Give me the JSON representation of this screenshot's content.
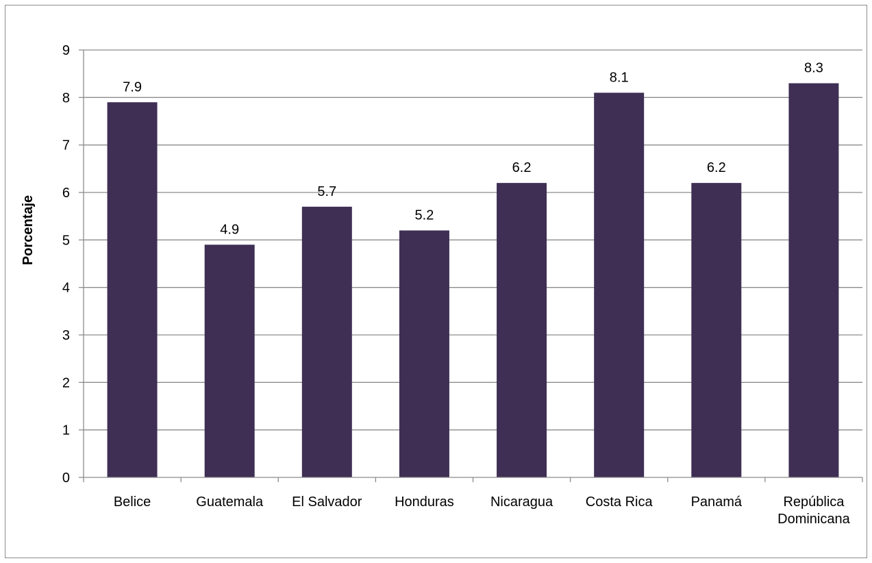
{
  "chart_data": {
    "type": "bar",
    "categories": [
      "Belice",
      "Guatemala",
      "El Salvador",
      "Honduras",
      "Nicaragua",
      "Costa Rica",
      "Panamá",
      "República Dominicana"
    ],
    "category_lines": [
      [
        "Belice"
      ],
      [
        "Guatemala"
      ],
      [
        "El Salvador"
      ],
      [
        "Honduras"
      ],
      [
        "Nicaragua"
      ],
      [
        "Costa Rica"
      ],
      [
        "Panamá"
      ],
      [
        "República",
        "Dominicana"
      ]
    ],
    "values": [
      7.9,
      4.9,
      5.7,
      5.2,
      6.2,
      8.1,
      6.2,
      8.3
    ],
    "data_labels": [
      "7.9",
      "4.9",
      "5.7",
      "5.2",
      "6.2",
      "8.1",
      "6.2",
      "8.3"
    ],
    "title": "",
    "xlabel": "",
    "ylabel": "Porcentaje",
    "ylim": [
      0,
      9
    ],
    "yticks": [
      0,
      1,
      2,
      3,
      4,
      5,
      6,
      7,
      8,
      9
    ],
    "grid": true,
    "legend": "none",
    "bar_color": "#3f2f54",
    "grid_color": "#8c8c8c",
    "axis_color": "#8c8c8c"
  }
}
